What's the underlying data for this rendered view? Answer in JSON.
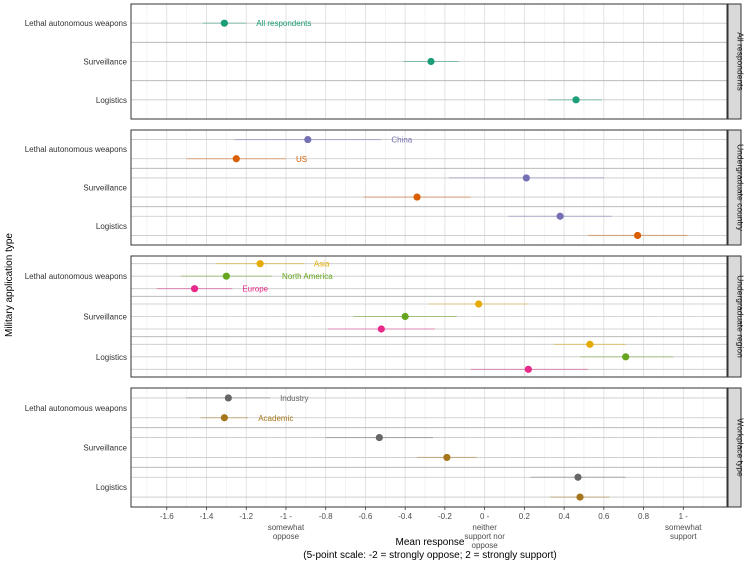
{
  "chart_data": {
    "type": "scatter",
    "subtype": "dot-and-whisker, faceted",
    "xlabel": "Mean response",
    "xlabel_sub": "(5-point scale: -2 = strongly oppose; 2 = strongly support)",
    "ylabel": "Military application type",
    "xlim": [
      -1.78,
      1.22
    ],
    "x_ticks": [
      {
        "value": -1.6,
        "label": "-1.6"
      },
      {
        "value": -1.4,
        "label": "-1.4"
      },
      {
        "value": -1.2,
        "label": "-1.2"
      },
      {
        "value": -1.0,
        "label": "-1 -",
        "sub": [
          "somewhat",
          "oppose"
        ]
      },
      {
        "value": -0.8,
        "label": "-0.8"
      },
      {
        "value": -0.6,
        "label": "-0.6"
      },
      {
        "value": -0.4,
        "label": "-0.4"
      },
      {
        "value": -0.2,
        "label": "-0.2"
      },
      {
        "value": 0.0,
        "label": "0 -",
        "sub": [
          "neither",
          "support nor",
          "oppose"
        ]
      },
      {
        "value": 0.2,
        "label": "0.2"
      },
      {
        "value": 0.4,
        "label": "0.4"
      },
      {
        "value": 0.6,
        "label": "0.6"
      },
      {
        "value": 0.8,
        "label": "0.8"
      },
      {
        "value": 1.0,
        "label": "1 -",
        "sub": [
          "somewhat",
          "support"
        ]
      }
    ],
    "categories": [
      "Lethal autonomous weapons",
      "Surveillance",
      "Logistics"
    ],
    "grid": true,
    "legend": "none (direct labels)",
    "panels": [
      {
        "strip": "All respondents",
        "series": [
          {
            "name": "All respondents",
            "color": "#1b9e77",
            "label_for": "Lethal autonomous weapons",
            "points": [
              {
                "category": "Lethal autonomous weapons",
                "mean": -1.31,
                "low": -1.42,
                "high": -1.2
              },
              {
                "category": "Surveillance",
                "mean": -0.27,
                "low": -0.41,
                "high": -0.13
              },
              {
                "category": "Logistics",
                "mean": 0.46,
                "low": 0.32,
                "high": 0.59
              }
            ]
          }
        ]
      },
      {
        "strip": "Undergraduate country",
        "series": [
          {
            "name": "China",
            "color": "#7570b3",
            "label_for": "Lethal autonomous weapons",
            "points": [
              {
                "category": "Lethal autonomous weapons",
                "mean": -0.89,
                "low": -1.26,
                "high": -0.52
              },
              {
                "category": "Surveillance",
                "mean": 0.21,
                "low": -0.18,
                "high": 0.6
              },
              {
                "category": "Logistics",
                "mean": 0.38,
                "low": 0.12,
                "high": 0.64
              }
            ]
          },
          {
            "name": "US",
            "color": "#d95f02",
            "label_for": "Lethal autonomous weapons",
            "points": [
              {
                "category": "Lethal autonomous weapons",
                "mean": -1.25,
                "low": -1.5,
                "high": -1.0
              },
              {
                "category": "Surveillance",
                "mean": -0.34,
                "low": -0.61,
                "high": -0.07
              },
              {
                "category": "Logistics",
                "mean": 0.77,
                "low": 0.52,
                "high": 1.02
              }
            ]
          }
        ]
      },
      {
        "strip": "Undergraduate region",
        "series": [
          {
            "name": "Asia",
            "color": "#e6ab02",
            "label_for": "Lethal autonomous weapons",
            "points": [
              {
                "category": "Lethal autonomous weapons",
                "mean": -1.13,
                "low": -1.35,
                "high": -0.91
              },
              {
                "category": "Surveillance",
                "mean": -0.03,
                "low": -0.28,
                "high": 0.22
              },
              {
                "category": "Logistics",
                "mean": 0.53,
                "low": 0.35,
                "high": 0.71
              }
            ]
          },
          {
            "name": "North America",
            "color": "#66a61e",
            "label_for": "Lethal autonomous weapons",
            "points": [
              {
                "category": "Lethal autonomous weapons",
                "mean": -1.3,
                "low": -1.53,
                "high": -1.07
              },
              {
                "category": "Surveillance",
                "mean": -0.4,
                "low": -0.66,
                "high": -0.14
              },
              {
                "category": "Logistics",
                "mean": 0.71,
                "low": 0.48,
                "high": 0.95
              }
            ]
          },
          {
            "name": "Europe",
            "color": "#e7298a",
            "label_for": "Lethal autonomous weapons",
            "points": [
              {
                "category": "Lethal autonomous weapons",
                "mean": -1.46,
                "low": -1.65,
                "high": -1.27
              },
              {
                "category": "Surveillance",
                "mean": -0.52,
                "low": -0.79,
                "high": -0.25
              },
              {
                "category": "Logistics",
                "mean": 0.22,
                "low": -0.07,
                "high": 0.52
              }
            ]
          }
        ]
      },
      {
        "strip": "Workplace type",
        "series": [
          {
            "name": "Industry",
            "color": "#666666",
            "label_for": "Lethal autonomous weapons",
            "points": [
              {
                "category": "Lethal autonomous weapons",
                "mean": -1.29,
                "low": -1.5,
                "high": -1.08
              },
              {
                "category": "Surveillance",
                "mean": -0.53,
                "low": -0.8,
                "high": -0.26
              },
              {
                "category": "Logistics",
                "mean": 0.47,
                "low": 0.23,
                "high": 0.71
              }
            ]
          },
          {
            "name": "Academic",
            "color": "#a6761d",
            "label_for": "Lethal autonomous weapons",
            "points": [
              {
                "category": "Lethal autonomous weapons",
                "mean": -1.31,
                "low": -1.43,
                "high": -1.19
              },
              {
                "category": "Surveillance",
                "mean": -0.19,
                "low": -0.34,
                "high": -0.04
              },
              {
                "category": "Logistics",
                "mean": 0.48,
                "low": 0.33,
                "high": 0.63
              }
            ]
          }
        ]
      }
    ]
  }
}
